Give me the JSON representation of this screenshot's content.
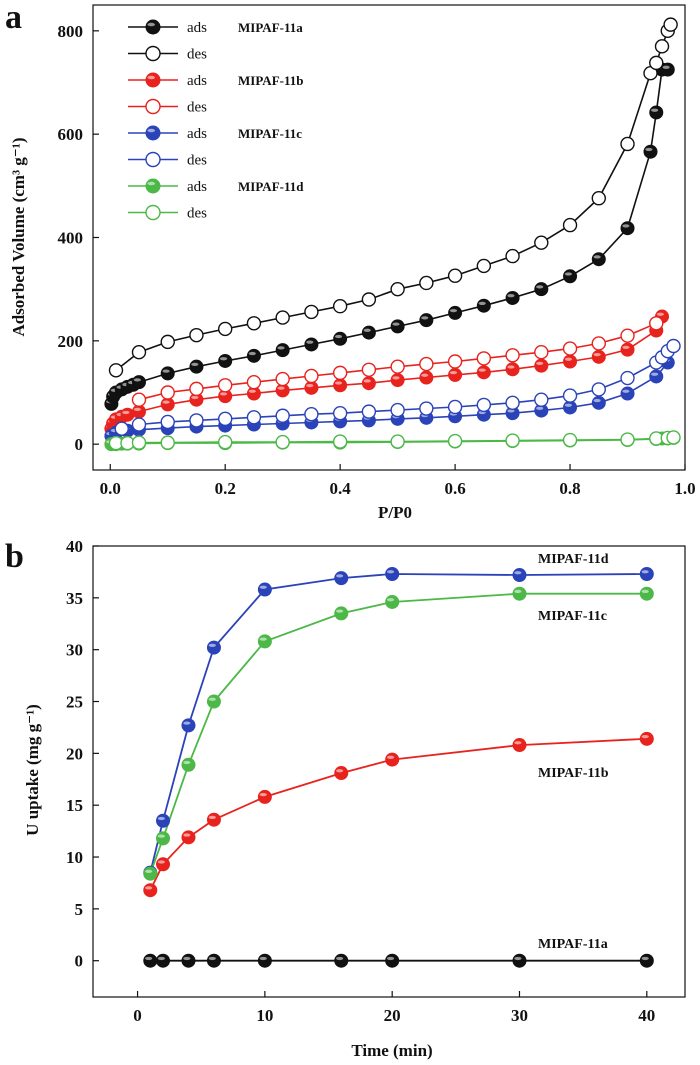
{
  "chart_data": [
    {
      "panel_letter": "a",
      "type": "scatter",
      "style": "line+markers",
      "xlabel": "P/P0",
      "ylabel": "Adsorbed Volume (cm³ g⁻¹)",
      "xlim": [
        -0.03,
        1.0
      ],
      "ylim": [
        -50,
        850
      ],
      "xticks": [
        0.0,
        0.2,
        0.4,
        0.6,
        0.8,
        1.0
      ],
      "xtick_labels": [
        "0.0",
        "0.2",
        "0.4",
        "0.6",
        "0.8",
        "1.0"
      ],
      "yticks": [
        0,
        200,
        400,
        600,
        800
      ],
      "ytick_labels": [
        "0",
        "200",
        "400",
        "600",
        "800"
      ],
      "grid": false,
      "legend_position": "top-left",
      "series": [
        {
          "name": "ads",
          "sample": "MIPAF-11a",
          "color": "#111111",
          "fill": "filled",
          "x": [
            0.002,
            0.005,
            0.01,
            0.02,
            0.03,
            0.04,
            0.05,
            0.1,
            0.15,
            0.2,
            0.25,
            0.3,
            0.35,
            0.4,
            0.45,
            0.5,
            0.55,
            0.6,
            0.65,
            0.7,
            0.75,
            0.8,
            0.85,
            0.9,
            0.94,
            0.95,
            0.96,
            0.97
          ],
          "y": [
            78,
            92,
            100,
            106,
            111,
            115,
            120,
            137,
            150,
            161,
            171,
            182,
            193,
            204,
            216,
            228,
            240,
            254,
            268,
            283,
            300,
            325,
            358,
            418,
            566,
            642,
            725,
            725
          ]
        },
        {
          "name": "des",
          "sample": "MIPAF-11a",
          "color": "#111111",
          "fill": "open",
          "x": [
            0.01,
            0.05,
            0.1,
            0.15,
            0.2,
            0.25,
            0.3,
            0.35,
            0.4,
            0.45,
            0.5,
            0.55,
            0.6,
            0.65,
            0.7,
            0.75,
            0.8,
            0.85,
            0.9,
            0.94,
            0.95,
            0.96,
            0.97,
            0.975
          ],
          "y": [
            143,
            178,
            198,
            211,
            223,
            234,
            245,
            256,
            267,
            280,
            300,
            312,
            326,
            345,
            364,
            390,
            424,
            476,
            581,
            718,
            738,
            770,
            800,
            812
          ]
        },
        {
          "name": "ads",
          "sample": "MIPAF-11b",
          "color": "#e8231e",
          "fill": "filled",
          "x": [
            0.002,
            0.005,
            0.01,
            0.02,
            0.03,
            0.05,
            0.1,
            0.15,
            0.2,
            0.25,
            0.3,
            0.35,
            0.4,
            0.45,
            0.5,
            0.55,
            0.6,
            0.65,
            0.7,
            0.75,
            0.8,
            0.85,
            0.9,
            0.95,
            0.96
          ],
          "y": [
            30,
            40,
            48,
            53,
            57,
            63,
            77,
            86,
            93,
            98,
            104,
            109,
            114,
            118,
            124,
            129,
            134,
            139,
            145,
            152,
            160,
            169,
            183,
            220,
            247
          ]
        },
        {
          "name": "des",
          "sample": "MIPAF-11b",
          "color": "#e8231e",
          "fill": "open",
          "x": [
            0.05,
            0.1,
            0.15,
            0.2,
            0.25,
            0.3,
            0.35,
            0.4,
            0.45,
            0.5,
            0.55,
            0.6,
            0.65,
            0.7,
            0.75,
            0.8,
            0.85,
            0.9,
            0.95
          ],
          "y": [
            86,
            100,
            107,
            114,
            120,
            126,
            132,
            138,
            144,
            150,
            155,
            160,
            166,
            172,
            178,
            185,
            195,
            210,
            234
          ]
        },
        {
          "name": "ads",
          "sample": "MIPAF-11c",
          "color": "#2b43b8",
          "fill": "filled",
          "x": [
            0.002,
            0.01,
            0.03,
            0.05,
            0.1,
            0.15,
            0.2,
            0.25,
            0.3,
            0.35,
            0.4,
            0.45,
            0.5,
            0.55,
            0.6,
            0.65,
            0.7,
            0.75,
            0.8,
            0.85,
            0.9,
            0.95,
            0.97
          ],
          "y": [
            16,
            22,
            26,
            28,
            31,
            34,
            36,
            38,
            40,
            42,
            44,
            46,
            49,
            51,
            54,
            57,
            60,
            65,
            71,
            80,
            98,
            131,
            158
          ]
        },
        {
          "name": "des",
          "sample": "MIPAF-11c",
          "color": "#2b43b8",
          "fill": "open",
          "x": [
            0.02,
            0.05,
            0.1,
            0.15,
            0.2,
            0.25,
            0.3,
            0.35,
            0.4,
            0.45,
            0.5,
            0.55,
            0.6,
            0.65,
            0.7,
            0.75,
            0.8,
            0.85,
            0.9,
            0.95,
            0.96,
            0.97,
            0.98
          ],
          "y": [
            30,
            38,
            43,
            46,
            49,
            52,
            55,
            58,
            60,
            63,
            66,
            69,
            72,
            76,
            80,
            86,
            94,
            106,
            128,
            158,
            168,
            180,
            190
          ]
        },
        {
          "name": "ads",
          "sample": "MIPAF-11d",
          "color": "#4cb847",
          "fill": "filled",
          "x": [
            0.002,
            0.01,
            0.02,
            0.03,
            0.05,
            0.1,
            0.2,
            0.3,
            0.4,
            0.5,
            0.6,
            0.7,
            0.8,
            0.9,
            0.95,
            0.96,
            0.97,
            0.98
          ],
          "y": [
            0,
            0,
            1,
            1,
            1,
            2,
            2,
            3,
            3,
            4,
            5,
            6,
            7,
            8,
            10,
            11,
            11,
            12
          ]
        },
        {
          "name": "des",
          "sample": "MIPAF-11d",
          "color": "#4cb847",
          "fill": "open",
          "x": [
            0.01,
            0.03,
            0.05,
            0.1,
            0.2,
            0.3,
            0.4,
            0.5,
            0.6,
            0.7,
            0.8,
            0.9,
            0.95,
            0.97,
            0.98
          ],
          "y": [
            2,
            2,
            3,
            3,
            4,
            4,
            5,
            5,
            6,
            7,
            8,
            9,
            11,
            12,
            13
          ]
        }
      ]
    },
    {
      "panel_letter": "b",
      "type": "line",
      "style": "line+markers",
      "xlabel": "Time (min)",
      "ylabel": "U uptake (mg g⁻¹)",
      "xlim": [
        -3.5,
        43
      ],
      "ylim": [
        -3.5,
        40
      ],
      "xticks": [
        0,
        10,
        20,
        30,
        40
      ],
      "xtick_labels": [
        "0",
        "10",
        "20",
        "30",
        "40"
      ],
      "yticks": [
        0,
        5,
        10,
        15,
        20,
        25,
        30,
        35,
        40
      ],
      "ytick_labels": [
        "0",
        "5",
        "10",
        "15",
        "20",
        "25",
        "30",
        "35",
        "40"
      ],
      "grid": false,
      "legend_position": "right (labels beside curves)",
      "x": [
        1,
        2,
        4,
        6,
        10,
        16,
        20,
        30,
        40
      ],
      "series": [
        {
          "name": "MIPAF-11d",
          "color": "#2b43b8",
          "values": [
            8.5,
            13.5,
            22.7,
            30.2,
            35.8,
            36.9,
            37.3,
            37.2,
            37.3
          ]
        },
        {
          "name": "MIPAF-11c",
          "color": "#4cb847",
          "values": [
            8.4,
            11.8,
            18.9,
            25.0,
            30.8,
            33.5,
            34.6,
            35.4,
            35.4
          ]
        },
        {
          "name": "MIPAF-11b",
          "color": "#e8231e",
          "values": [
            6.8,
            9.3,
            11.9,
            13.6,
            15.8,
            18.1,
            19.4,
            20.8,
            21.4
          ]
        },
        {
          "name": "MIPAF-11a",
          "color": "#111111",
          "values": [
            0,
            0,
            0,
            0,
            0,
            0,
            0,
            0,
            0
          ]
        }
      ]
    }
  ]
}
